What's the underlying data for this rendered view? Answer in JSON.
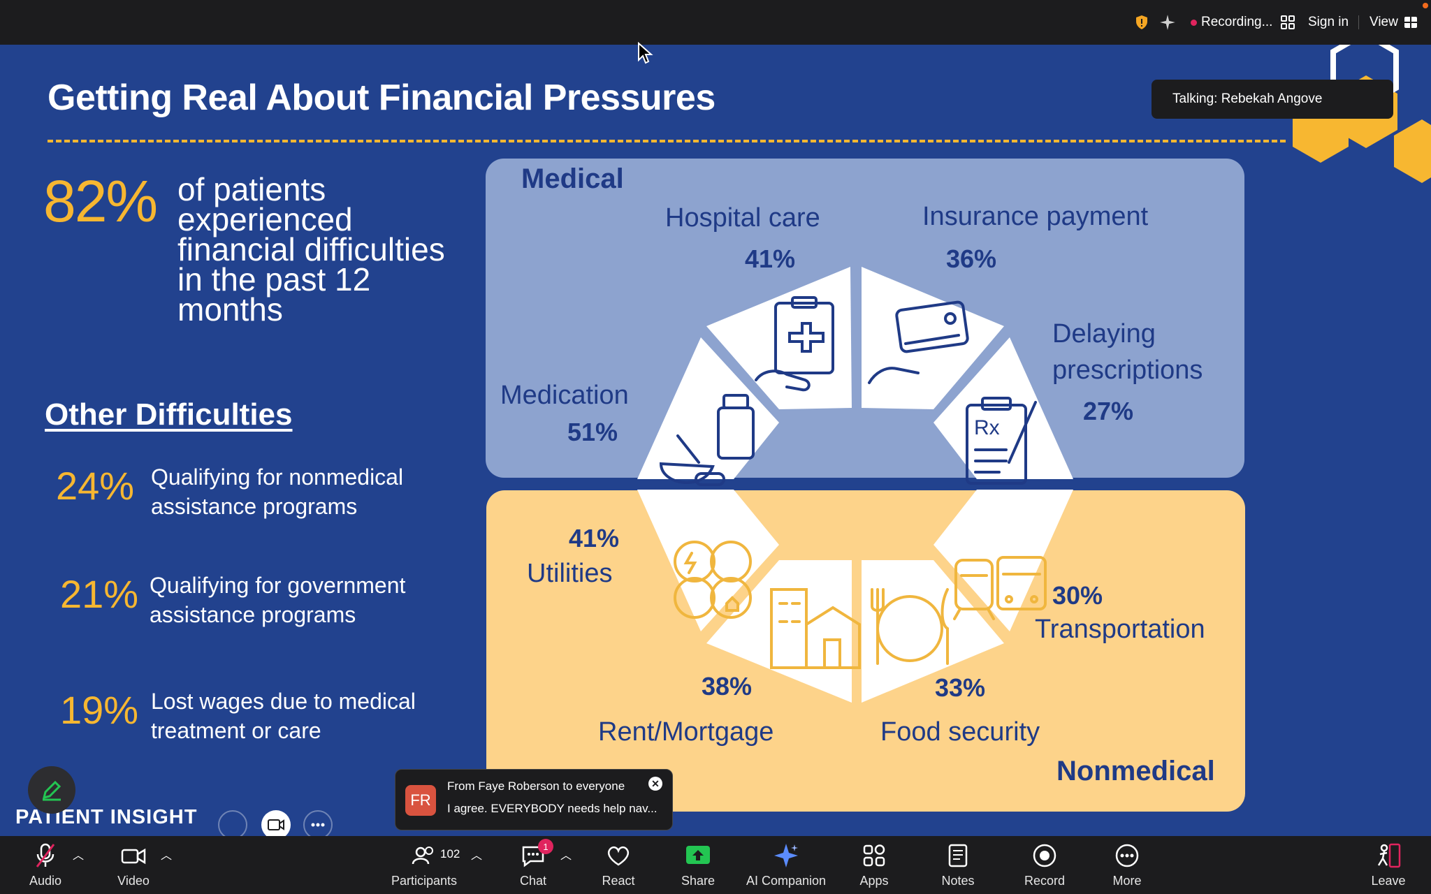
{
  "topbar": {
    "recording_label": "Recording...",
    "sign_in_label": "Sign in",
    "view_label": "View"
  },
  "slide": {
    "title": "Getting Real About Financial Pressures",
    "headline_pct": "82%",
    "headline_text": "of patients experienced financial difficulties in the past 12 months",
    "other_heading": "Other Difficulties",
    "other_stats": [
      {
        "pct": "24%",
        "text": "Qualifying for nonmedical assistance programs"
      },
      {
        "pct": "21%",
        "text": "Qualifying for government assistance programs"
      },
      {
        "pct": "19%",
        "text": "Lost wages due to medical  treatment or care"
      }
    ],
    "medical": {
      "label": "Medical",
      "items": [
        {
          "name": "Hospital care",
          "pct": "41%"
        },
        {
          "name": "Insurance payment",
          "pct": "36%"
        },
        {
          "name": "Medication",
          "pct": "51%"
        },
        {
          "name": "Delaying prescriptions",
          "pct": "27%"
        }
      ]
    },
    "nonmedical": {
      "label": "Nonmedical",
      "items": [
        {
          "name": "Utilities",
          "pct": "41%"
        },
        {
          "name": "Transportation",
          "pct": "30%"
        },
        {
          "name": "Rent/Mortgage",
          "pct": "38%"
        },
        {
          "name": "Food security",
          "pct": "33%"
        }
      ]
    },
    "logo_text": "PATIENT INSIGHT"
  },
  "talking": "Talking: Rebekah Angove",
  "chat_notification": {
    "avatar_initials": "FR",
    "from": "From Faye Roberson to everyone",
    "message": "I agree. EVERYBODY needs help nav..."
  },
  "toolbar": {
    "audio": "Audio",
    "video": "Video",
    "participants": "Participants",
    "participants_count": "102",
    "chat": "Chat",
    "chat_badge": "1",
    "react": "React",
    "share": "Share",
    "ai_companion": "AI Companion",
    "apps": "Apps",
    "notes": "Notes",
    "record": "Record",
    "more": "More",
    "leave": "Leave"
  },
  "colors": {
    "slide_bg": "#22428e",
    "accent_yellow": "#f7b731",
    "medical_panel": "#8da3cf",
    "nonmedical_panel": "#fdd38a",
    "dark_blue_text": "#1f3a86",
    "share_green": "#23c552",
    "alert_red": "#e0245e"
  }
}
